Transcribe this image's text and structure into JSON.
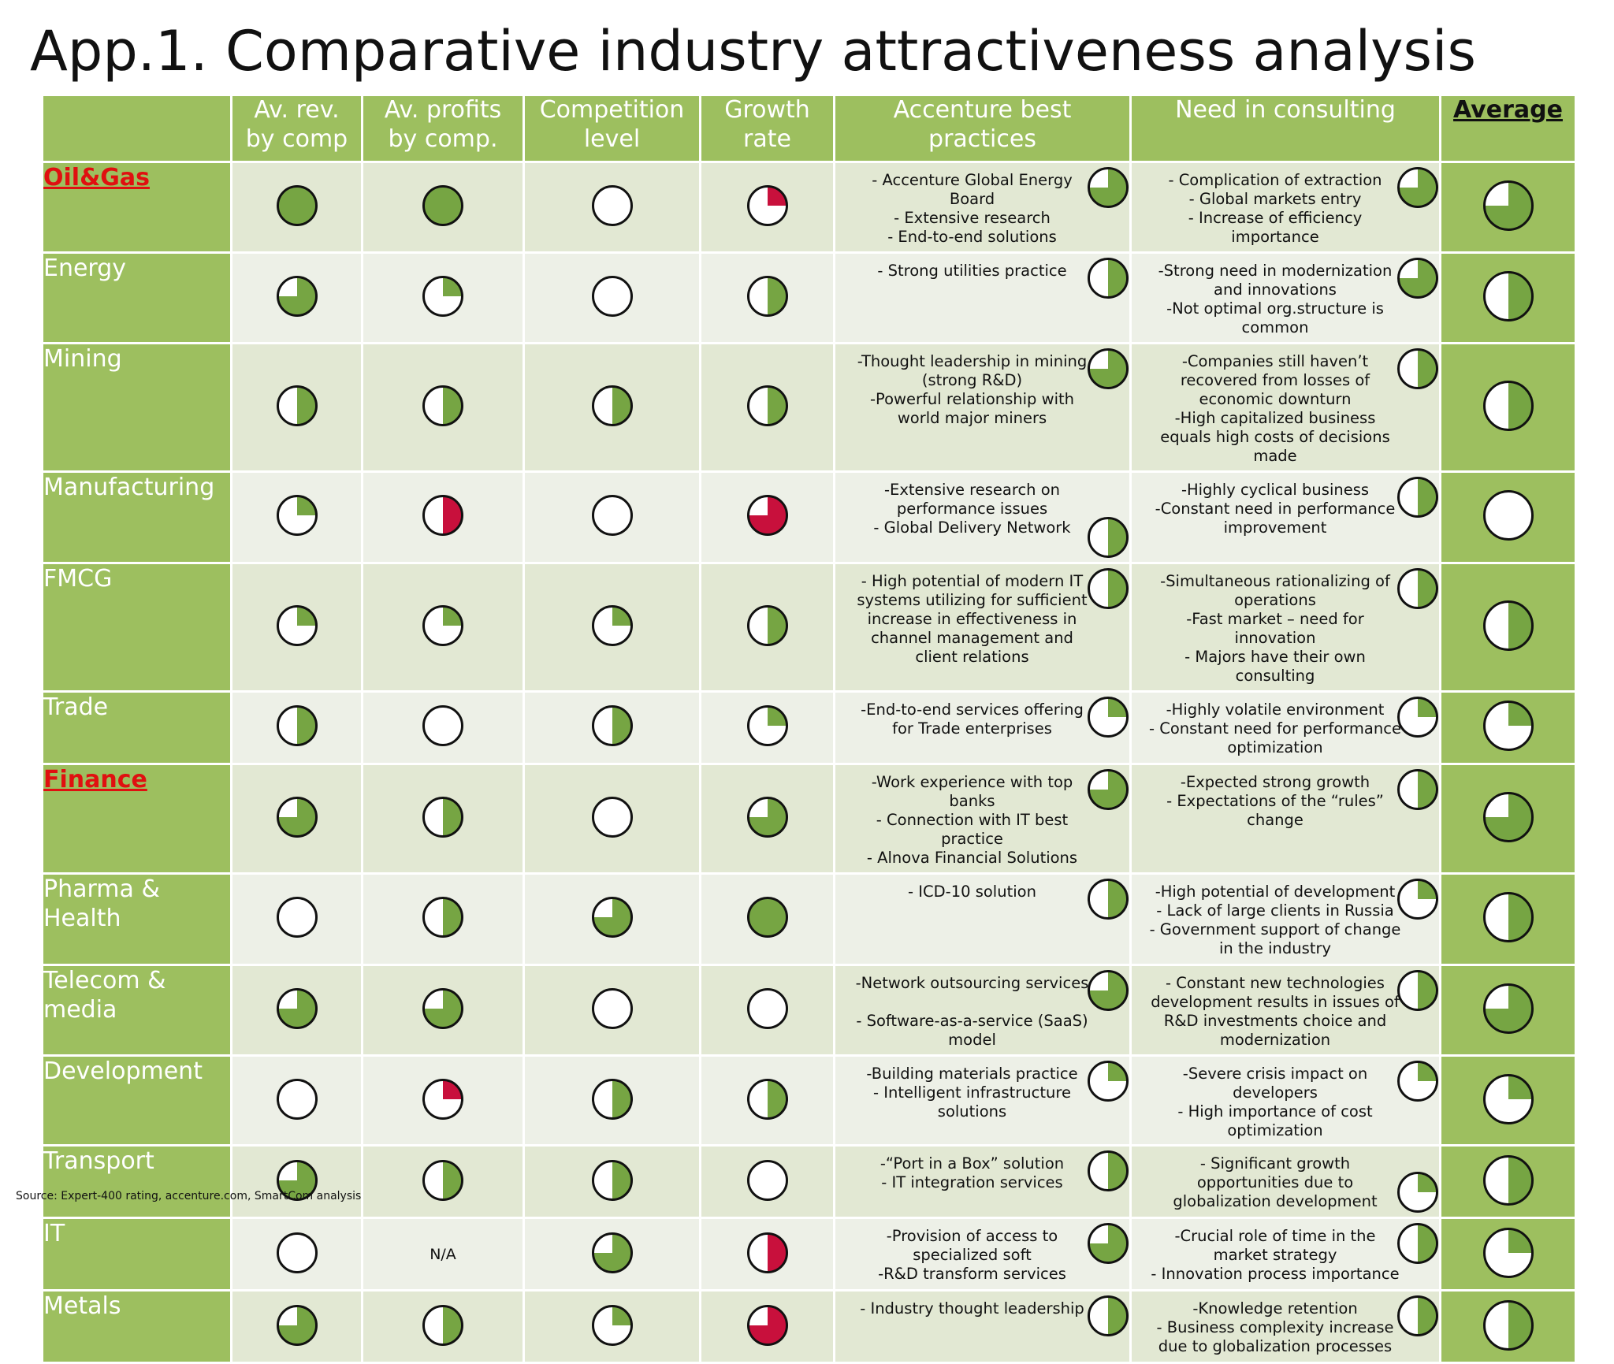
{
  "title": "App.1. Comparative industry attractiveness analysis",
  "headers": {
    "industry": "",
    "rev": "Av. rev.\nby comp",
    "profit": "Av. profits\nby comp.",
    "competition": "Competition\nlevel",
    "growth": "Growth\nrate",
    "practices": "Accenture best\npractices",
    "need": "Need in consulting",
    "average": "Average"
  },
  "colors": {
    "green": "#76a543",
    "red": "#c8103c",
    "header_bg": "#9dbf5f",
    "highlight": "#e01010"
  },
  "rows": [
    {
      "name": "Oil&Gas",
      "highlight": true,
      "rev": {
        "v": 1,
        "c": "green"
      },
      "profit": {
        "v": 1,
        "c": "green"
      },
      "comp": {
        "v": 0,
        "c": "green"
      },
      "growth": {
        "v": 0.25,
        "c": "red"
      },
      "practices": "- Accenture Global Energy Board\n- Extensive research\n- End-to-end solutions",
      "practices_ball": 0.75,
      "need": "- Complication of extraction\n- Global markets entry\n- Increase of efficiency importance",
      "need_ball": 0.75,
      "average": 0.75
    },
    {
      "name": "Energy",
      "highlight": false,
      "rev": {
        "v": 0.75,
        "c": "green"
      },
      "profit": {
        "v": 0.25,
        "c": "green"
      },
      "comp": {
        "v": 0,
        "c": "green"
      },
      "growth": {
        "v": 0.5,
        "c": "green"
      },
      "practices": "- Strong utilities practice",
      "practices_ball": 0.5,
      "need": "-Strong need in modernization and innovations\n-Not optimal org.structure is common",
      "need_ball": 0.75,
      "average": 0.5
    },
    {
      "name": "Mining",
      "highlight": false,
      "rev": {
        "v": 0.5,
        "c": "green"
      },
      "profit": {
        "v": 0.5,
        "c": "green"
      },
      "comp": {
        "v": 0.5,
        "c": "green"
      },
      "growth": {
        "v": 0.5,
        "c": "green"
      },
      "practices": "-Thought leadership in mining (strong R&D)\n-Powerful relationship with world major miners",
      "practices_ball": 0.75,
      "need": "-Companies still haven’t recovered from losses of economic downturn\n-High capitalized business equals high costs of decisions made",
      "need_ball": 0.5,
      "average": 0.5
    },
    {
      "name": "Manufacturing",
      "highlight": false,
      "rev": {
        "v": 0.25,
        "c": "green"
      },
      "profit": {
        "v": 0.5,
        "c": "red"
      },
      "comp": {
        "v": 0,
        "c": "green"
      },
      "growth": {
        "v": 0.75,
        "c": "red"
      },
      "practices": "-Extensive research on performance issues\n- Global Delivery Network",
      "practices_ball": 0.5,
      "need": "-Highly cyclical business\n-Constant need in performance improvement",
      "need_ball": 0.5,
      "average": 0
    },
    {
      "name": "FMCG",
      "highlight": false,
      "rev": {
        "v": 0.25,
        "c": "green"
      },
      "profit": {
        "v": 0.25,
        "c": "green"
      },
      "comp": {
        "v": 0.25,
        "c": "green"
      },
      "growth": {
        "v": 0.5,
        "c": "green"
      },
      "practices": "- High potential of modern IT systems utilizing for sufficient increase in effectiveness in channel management and client relations",
      "practices_ball": 0.5,
      "need": "-Simultaneous rationalizing of operations\n-Fast market – need for innovation\n- Majors have their own consulting",
      "need_ball": 0.5,
      "average": 0.5
    },
    {
      "name": "Trade",
      "highlight": false,
      "rev": {
        "v": 0.5,
        "c": "green"
      },
      "profit": {
        "v": 0,
        "c": "green"
      },
      "comp": {
        "v": 0.5,
        "c": "green"
      },
      "growth": {
        "v": 0.25,
        "c": "green"
      },
      "practices": "-End-to-end services offering for Trade enterprises",
      "practices_ball": 0.25,
      "need": "-Highly volatile environment\n- Constant need for performance optimization",
      "need_ball": 0.25,
      "average": 0.25
    },
    {
      "name": "Finance",
      "highlight": true,
      "rev": {
        "v": 0.75,
        "c": "green"
      },
      "profit": {
        "v": 0.5,
        "c": "green"
      },
      "comp": {
        "v": 0,
        "c": "green"
      },
      "growth": {
        "v": 0.75,
        "c": "green"
      },
      "practices": "-Work experience with top banks\n- Connection with IT best practice\n- Alnova Financial Solutions",
      "practices_ball": 0.75,
      "need": "-Expected strong growth\n- Expectations of the “rules” change",
      "need_ball": 0.5,
      "average": 0.75
    },
    {
      "name": "Pharma &\nHealth",
      "highlight": false,
      "rev": {
        "v": 0,
        "c": "green"
      },
      "profit": {
        "v": 0.5,
        "c": "green"
      },
      "comp": {
        "v": 0.75,
        "c": "green"
      },
      "growth": {
        "v": 1,
        "c": "green"
      },
      "practices": "- ICD-10 solution",
      "practices_ball": 0.5,
      "need": "-High potential of development\n- Lack of large clients in Russia\n- Government support of change in the industry",
      "need_ball": 0.25,
      "average": 0.5
    },
    {
      "name": "Telecom &\nmedia",
      "highlight": false,
      "rev": {
        "v": 0.75,
        "c": "green"
      },
      "profit": {
        "v": 0.75,
        "c": "green"
      },
      "comp": {
        "v": 0,
        "c": "green"
      },
      "growth": {
        "v": 0,
        "c": "green"
      },
      "practices": "-Network outsourcing services\n\n- Software-as-a-service (SaaS) model",
      "practices_ball": 0.75,
      "need": "- Constant new technologies development results in issues of R&D investments choice and modernization",
      "need_ball": 0.5,
      "average": 0.75
    },
    {
      "name": "Development",
      "highlight": false,
      "rev": {
        "v": 0,
        "c": "green"
      },
      "profit": {
        "v": 0.25,
        "c": "red"
      },
      "comp": {
        "v": 0.5,
        "c": "green"
      },
      "growth": {
        "v": 0.5,
        "c": "green"
      },
      "practices": "-Building materials practice\n- Intelligent infrastructure solutions",
      "practices_ball": 0.25,
      "need": "-Severe crisis impact on developers\n- High importance of cost optimization",
      "need_ball": 0.25,
      "average": 0.25
    },
    {
      "name": "Transport",
      "highlight": false,
      "rev": {
        "v": 0.75,
        "c": "green"
      },
      "profit": {
        "v": 0.5,
        "c": "green"
      },
      "comp": {
        "v": 0.5,
        "c": "green"
      },
      "growth": {
        "v": 0,
        "c": "green"
      },
      "practices": "-“Port in a Box” solution\n- IT integration services",
      "practices_ball": 0.5,
      "need": "- Significant growth opportunities due to globalization development",
      "need_ball": 0.25,
      "average": 0.5
    },
    {
      "name": "IT",
      "highlight": false,
      "rev": {
        "v": 0,
        "c": "green"
      },
      "profit": {
        "na": true,
        "label": "N/A"
      },
      "comp": {
        "v": 0.75,
        "c": "green"
      },
      "growth": {
        "v": 0.5,
        "c": "red"
      },
      "practices": "-Provision of access to specialized soft\n-R&D transform services",
      "practices_ball": 0.75,
      "need": "-Crucial role of time in the market strategy\n- Innovation process importance",
      "need_ball": 0.5,
      "average": 0.25
    },
    {
      "name": "Metals",
      "highlight": false,
      "rev": {
        "v": 0.75,
        "c": "green"
      },
      "profit": {
        "v": 0.5,
        "c": "green"
      },
      "comp": {
        "v": 0.25,
        "c": "green"
      },
      "growth": {
        "v": 0.75,
        "c": "red"
      },
      "practices": "- Industry thought leadership",
      "practices_ball": 0.5,
      "need": "-Knowledge retention\n- Business complexity increase due to globalization processes",
      "need_ball": 0.5,
      "average": 0.5
    }
  ],
  "source": "Source: Expert-400 rating, accenture.com, SmartCom analysis"
}
